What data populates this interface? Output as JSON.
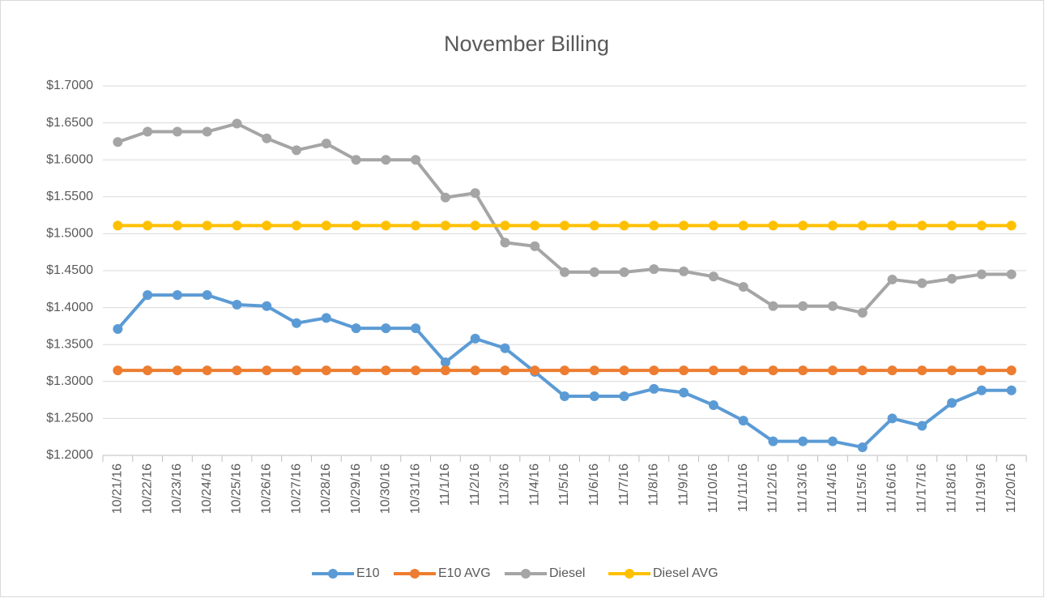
{
  "chart_data": {
    "type": "line",
    "title": "November Billing",
    "categories": [
      "10/21/16",
      "10/22/16",
      "10/23/16",
      "10/24/16",
      "10/25/16",
      "10/26/16",
      "10/27/16",
      "10/28/16",
      "10/29/16",
      "10/30/16",
      "10/31/16",
      "11/1/16",
      "11/2/16",
      "11/3/16",
      "11/4/16",
      "11/5/16",
      "11/6/16",
      "11/7/16",
      "11/8/16",
      "11/9/16",
      "11/10/16",
      "11/11/16",
      "11/12/16",
      "11/13/16",
      "11/14/16",
      "11/15/16",
      "11/16/16",
      "11/17/16",
      "11/18/16",
      "11/19/16",
      "11/20/16"
    ],
    "series": [
      {
        "name": "E10",
        "color": "#5b9bd5",
        "values": [
          1.371,
          1.417,
          1.417,
          1.417,
          1.404,
          1.402,
          1.379,
          1.386,
          1.372,
          1.372,
          1.372,
          1.326,
          1.358,
          1.345,
          1.313,
          1.28,
          1.28,
          1.28,
          1.29,
          1.285,
          1.268,
          1.247,
          1.219,
          1.219,
          1.219,
          1.211,
          1.25,
          1.24,
          1.271,
          1.288,
          1.288
        ]
      },
      {
        "name": "E10 AVG",
        "color": "#ed7d31",
        "values": [
          1.315,
          1.315,
          1.315,
          1.315,
          1.315,
          1.315,
          1.315,
          1.315,
          1.315,
          1.315,
          1.315,
          1.315,
          1.315,
          1.315,
          1.315,
          1.315,
          1.315,
          1.315,
          1.315,
          1.315,
          1.315,
          1.315,
          1.315,
          1.315,
          1.315,
          1.315,
          1.315,
          1.315,
          1.315,
          1.315,
          1.315
        ]
      },
      {
        "name": "Diesel",
        "color": "#a5a5a5",
        "values": [
          1.624,
          1.638,
          1.638,
          1.638,
          1.649,
          1.629,
          1.613,
          1.622,
          1.6,
          1.6,
          1.6,
          1.549,
          1.555,
          1.488,
          1.483,
          1.448,
          1.448,
          1.448,
          1.452,
          1.449,
          1.442,
          1.428,
          1.402,
          1.402,
          1.402,
          1.393,
          1.438,
          1.433,
          1.439,
          1.445,
          1.445
        ]
      },
      {
        "name": "Diesel AVG",
        "color": "#ffc000",
        "values": [
          1.511,
          1.511,
          1.511,
          1.511,
          1.511,
          1.511,
          1.511,
          1.511,
          1.511,
          1.511,
          1.511,
          1.511,
          1.511,
          1.511,
          1.511,
          1.511,
          1.511,
          1.511,
          1.511,
          1.511,
          1.511,
          1.511,
          1.511,
          1.511,
          1.511,
          1.511,
          1.511,
          1.511,
          1.511,
          1.511,
          1.511
        ]
      }
    ],
    "ylim": [
      1.2,
      1.7
    ],
    "yticks": [
      {
        "value": 1.2,
        "label": "$1.2000"
      },
      {
        "value": 1.25,
        "label": "$1.2500"
      },
      {
        "value": 1.3,
        "label": "$1.3000"
      },
      {
        "value": 1.35,
        "label": "$1.3500"
      },
      {
        "value": 1.4,
        "label": "$1.4000"
      },
      {
        "value": 1.45,
        "label": "$1.4500"
      },
      {
        "value": 1.5,
        "label": "$1.5000"
      },
      {
        "value": 1.55,
        "label": "$1.5500"
      },
      {
        "value": 1.6,
        "label": "$1.6000"
      },
      {
        "value": 1.65,
        "label": "$1.6500"
      },
      {
        "value": 1.7,
        "label": "$1.7000"
      }
    ],
    "grid": true,
    "legend": "bottom"
  }
}
